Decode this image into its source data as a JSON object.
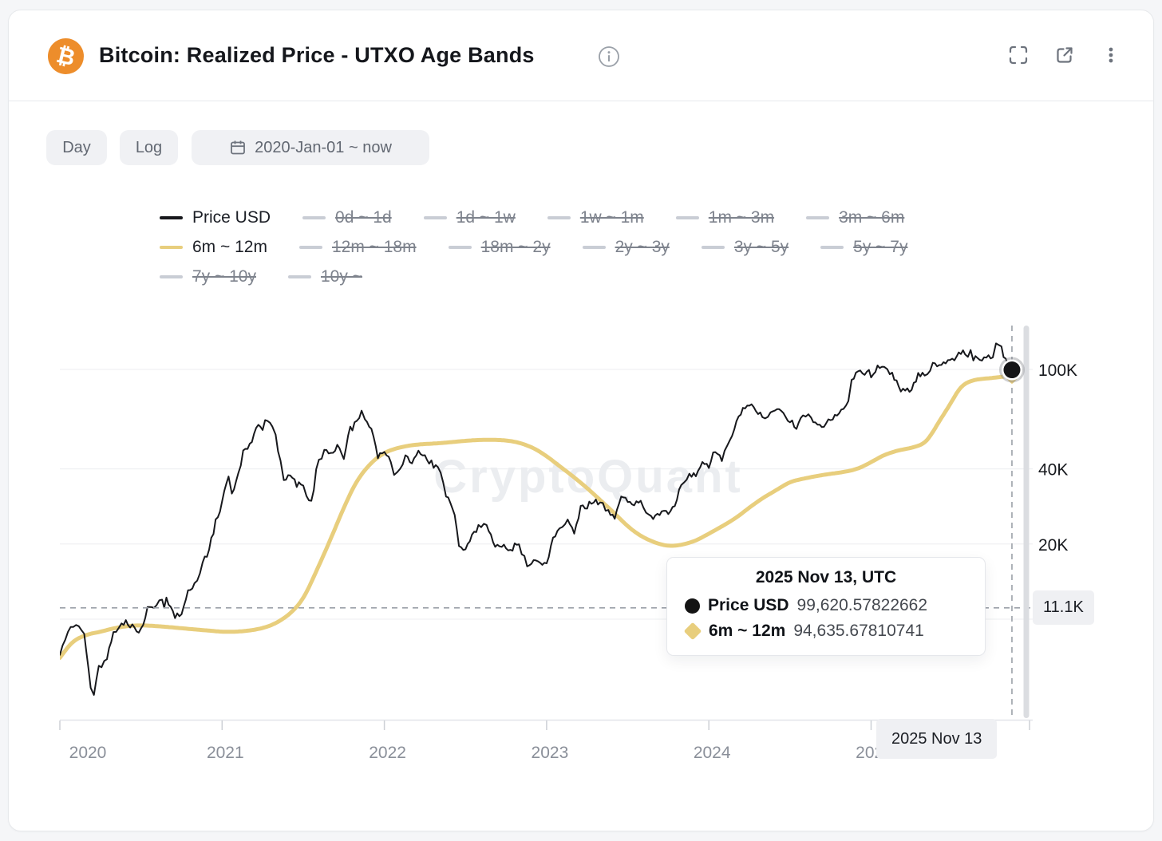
{
  "header": {
    "title": "Bitcoin: Realized Price - UTXO Age Bands",
    "coin_icon": "bitcoin-icon",
    "actions": [
      "fullscreen-icon",
      "open-external-icon",
      "more-menu-icon"
    ]
  },
  "toolbar": {
    "interval": "Day",
    "scale": "Log",
    "date_range": "2020-Jan-01 ~ now"
  },
  "legend": {
    "items": [
      {
        "label": "Price USD",
        "color": "#17181c",
        "active": true
      },
      {
        "label": "0d ~ 1d",
        "active": false
      },
      {
        "label": "1d ~ 1w",
        "active": false
      },
      {
        "label": "1w ~ 1m",
        "active": false
      },
      {
        "label": "1m ~ 3m",
        "active": false
      },
      {
        "label": "3m ~ 6m",
        "active": false
      },
      {
        "label": "6m ~ 12m",
        "color": "#E8CE7D",
        "active": true
      },
      {
        "label": "12m ~ 18m",
        "active": false
      },
      {
        "label": "18m ~ 2y",
        "active": false
      },
      {
        "label": "2y ~ 3y",
        "active": false
      },
      {
        "label": "3y ~ 5y",
        "active": false
      },
      {
        "label": "5y ~ 7y",
        "active": false
      },
      {
        "label": "7y ~ 10y",
        "active": false
      },
      {
        "label": "10y ~",
        "active": false
      }
    ],
    "inactive_color": "#c9cdd5",
    "row_breaks": [
      6,
      12,
      14
    ]
  },
  "watermark": "CryptoQuant",
  "tooltip": {
    "title": "2025 Nov 13, UTC",
    "rows": [
      {
        "marker": "circle",
        "color": "#141414",
        "label": "Price USD",
        "value": "99,620.57822662"
      },
      {
        "marker": "diamond",
        "color": "#E8CE7D",
        "label": "6m ~ 12m",
        "value": "94,635.67810741"
      }
    ]
  },
  "crosshair": {
    "date_label": "2025 Nov 13",
    "y_axis_label": "11.1K",
    "x": 2025.868,
    "hover_value": 11100,
    "point_price": 99620.57822662,
    "point_band": 94635.67810741
  },
  "chart_data": {
    "type": "line",
    "title": "Bitcoin: Realized Price - UTXO Age Bands",
    "x_unit": "decimal_year",
    "xlim": [
      2019.96,
      2025.98
    ],
    "y_scale": "log",
    "ylim": [
      3950,
      150000
    ],
    "grid": "horizontal",
    "x_ticks": [
      {
        "label": "2020",
        "year": 2020
      },
      {
        "label": "2021",
        "year": 2021
      },
      {
        "label": "2022",
        "year": 2022
      },
      {
        "label": "2023",
        "year": 2023
      },
      {
        "label": "2024",
        "year": 2024
      },
      {
        "label": "2025",
        "year": 2025
      }
    ],
    "y_ticks": [
      {
        "label": "100K",
        "value": 100000
      },
      {
        "label": "40K",
        "value": 40000
      },
      {
        "label": "20K",
        "value": 20000
      },
      {
        "label": "",
        "value": 10000
      }
    ],
    "series": [
      {
        "name": "Price USD",
        "color": "#17181c",
        "style": "jagged",
        "values": [
          [
            2020.0,
            7200
          ],
          [
            2020.05,
            8900
          ],
          [
            2020.1,
            9900
          ],
          [
            2020.15,
            8600
          ],
          [
            2020.19,
            5300
          ],
          [
            2020.21,
            4900
          ],
          [
            2020.24,
            6400
          ],
          [
            2020.29,
            7100
          ],
          [
            2020.33,
            8800
          ],
          [
            2020.38,
            9700
          ],
          [
            2020.42,
            9400
          ],
          [
            2020.46,
            9300
          ],
          [
            2020.5,
            9100
          ],
          [
            2020.54,
            10900
          ],
          [
            2020.58,
            11400
          ],
          [
            2020.63,
            11700
          ],
          [
            2020.67,
            11500
          ],
          [
            2020.71,
            10300
          ],
          [
            2020.75,
            10700
          ],
          [
            2020.79,
            13100
          ],
          [
            2020.83,
            13800
          ],
          [
            2020.88,
            16500
          ],
          [
            2020.92,
            19200
          ],
          [
            2020.96,
            23800
          ],
          [
            2021.0,
            29300
          ],
          [
            2021.04,
            37600
          ],
          [
            2021.06,
            31000
          ],
          [
            2021.1,
            38000
          ],
          [
            2021.13,
            46300
          ],
          [
            2021.17,
            50400
          ],
          [
            2021.21,
            58900
          ],
          [
            2021.25,
            58800
          ],
          [
            2021.28,
            63500
          ],
          [
            2021.31,
            58000
          ],
          [
            2021.33,
            53600
          ],
          [
            2021.36,
            43000
          ],
          [
            2021.38,
            36700
          ],
          [
            2021.42,
            37300
          ],
          [
            2021.46,
            35000
          ],
          [
            2021.5,
            33500
          ],
          [
            2021.52,
            31400
          ],
          [
            2021.55,
            29800
          ],
          [
            2021.58,
            39900
          ],
          [
            2021.63,
            47100
          ],
          [
            2021.67,
            47000
          ],
          [
            2021.71,
            48800
          ],
          [
            2021.75,
            43800
          ],
          [
            2021.79,
            57500
          ],
          [
            2021.83,
            61300
          ],
          [
            2021.86,
            66900
          ],
          [
            2021.88,
            63600
          ],
          [
            2021.92,
            57000
          ],
          [
            2021.96,
            46200
          ],
          [
            2022.0,
            47700
          ],
          [
            2022.04,
            43100
          ],
          [
            2022.06,
            36900
          ],
          [
            2022.08,
            38500
          ],
          [
            2022.13,
            44400
          ],
          [
            2022.17,
            43200
          ],
          [
            2022.21,
            47500
          ],
          [
            2022.25,
            45500
          ],
          [
            2022.29,
            41500
          ],
          [
            2022.33,
            39700
          ],
          [
            2022.38,
            31800
          ],
          [
            2022.42,
            29000
          ],
          [
            2022.46,
            20100
          ],
          [
            2022.5,
            19000
          ],
          [
            2022.54,
            21600
          ],
          [
            2022.58,
            23300
          ],
          [
            2022.63,
            24400
          ],
          [
            2022.67,
            20000
          ],
          [
            2022.71,
            19800
          ],
          [
            2022.75,
            19400
          ],
          [
            2022.79,
            19200
          ],
          [
            2022.83,
            20500
          ],
          [
            2022.88,
            16500
          ],
          [
            2022.92,
            17100
          ],
          [
            2022.96,
            16600
          ],
          [
            2023.0,
            16600
          ],
          [
            2023.04,
            21000
          ],
          [
            2023.08,
            23100
          ],
          [
            2023.13,
            24800
          ],
          [
            2023.17,
            22400
          ],
          [
            2023.21,
            28000
          ],
          [
            2023.25,
            28500
          ],
          [
            2023.29,
            30000
          ],
          [
            2023.33,
            29200
          ],
          [
            2023.38,
            27200
          ],
          [
            2023.42,
            25800
          ],
          [
            2023.46,
            30500
          ],
          [
            2023.5,
            30300
          ],
          [
            2023.54,
            29200
          ],
          [
            2023.58,
            29200
          ],
          [
            2023.63,
            26000
          ],
          [
            2023.67,
            25900
          ],
          [
            2023.71,
            26600
          ],
          [
            2023.75,
            27000
          ],
          [
            2023.79,
            28500
          ],
          [
            2023.83,
            34700
          ],
          [
            2023.88,
            37800
          ],
          [
            2023.92,
            37300
          ],
          [
            2023.96,
            42300
          ],
          [
            2024.0,
            42600
          ],
          [
            2024.04,
            46700
          ],
          [
            2024.08,
            43100
          ],
          [
            2024.13,
            51600
          ],
          [
            2024.17,
            62400
          ],
          [
            2024.21,
            68500
          ],
          [
            2024.25,
            71300
          ],
          [
            2024.29,
            69400
          ],
          [
            2024.33,
            63800
          ],
          [
            2024.38,
            67500
          ],
          [
            2024.42,
            69000
          ],
          [
            2024.46,
            66200
          ],
          [
            2024.5,
            62700
          ],
          [
            2024.54,
            57000
          ],
          [
            2024.58,
            66800
          ],
          [
            2024.63,
            64600
          ],
          [
            2024.67,
            59000
          ],
          [
            2024.71,
            59100
          ],
          [
            2024.75,
            63300
          ],
          [
            2024.79,
            66600
          ],
          [
            2024.83,
            69900
          ],
          [
            2024.86,
            76000
          ],
          [
            2024.88,
            91000
          ],
          [
            2024.92,
            96400
          ],
          [
            2024.96,
            97000
          ],
          [
            2025.0,
            94400
          ],
          [
            2025.04,
            102100
          ],
          [
            2025.08,
            104700
          ],
          [
            2025.1,
            97700
          ],
          [
            2025.13,
            96600
          ],
          [
            2025.17,
            84400
          ],
          [
            2025.21,
            82500
          ],
          [
            2025.25,
            82500
          ],
          [
            2025.29,
            94200
          ],
          [
            2025.33,
            94700
          ],
          [
            2025.38,
            104600
          ],
          [
            2025.42,
            103400
          ],
          [
            2025.46,
            107100
          ],
          [
            2025.5,
            108000
          ],
          [
            2025.54,
            118000
          ],
          [
            2025.58,
            115800
          ],
          [
            2025.63,
            113500
          ],
          [
            2025.67,
            108200
          ],
          [
            2025.71,
            112000
          ],
          [
            2025.75,
            114000
          ],
          [
            2025.77,
            125100
          ],
          [
            2025.79,
            122000
          ],
          [
            2025.83,
            110100
          ],
          [
            2025.85,
            103000
          ],
          [
            2025.868,
            99620.57822662
          ]
        ]
      },
      {
        "name": "6m ~ 12m",
        "color": "#E8CE7D",
        "style": "smooth",
        "values": [
          [
            2020.0,
            7000
          ],
          [
            2020.08,
            8200
          ],
          [
            2020.17,
            8700
          ],
          [
            2020.25,
            8900
          ],
          [
            2020.33,
            9200
          ],
          [
            2020.42,
            9400
          ],
          [
            2020.5,
            9450
          ],
          [
            2020.58,
            9400
          ],
          [
            2020.67,
            9300
          ],
          [
            2020.75,
            9200
          ],
          [
            2020.83,
            9100
          ],
          [
            2020.92,
            9000
          ],
          [
            2021.0,
            8900
          ],
          [
            2021.08,
            8900
          ],
          [
            2021.17,
            9000
          ],
          [
            2021.25,
            9200
          ],
          [
            2021.33,
            9600
          ],
          [
            2021.42,
            10500
          ],
          [
            2021.5,
            12000
          ],
          [
            2021.58,
            15500
          ],
          [
            2021.67,
            21000
          ],
          [
            2021.75,
            28000
          ],
          [
            2021.83,
            36000
          ],
          [
            2021.92,
            42500
          ],
          [
            2022.0,
            46500
          ],
          [
            2022.08,
            48500
          ],
          [
            2022.17,
            49800
          ],
          [
            2022.25,
            50300
          ],
          [
            2022.33,
            50600
          ],
          [
            2022.42,
            51200
          ],
          [
            2022.5,
            51800
          ],
          [
            2022.58,
            52200
          ],
          [
            2022.67,
            52300
          ],
          [
            2022.75,
            52000
          ],
          [
            2022.83,
            51000
          ],
          [
            2022.92,
            48500
          ],
          [
            2023.0,
            45000
          ],
          [
            2023.08,
            41000
          ],
          [
            2023.17,
            37000
          ],
          [
            2023.25,
            33500
          ],
          [
            2023.33,
            30000
          ],
          [
            2023.42,
            26500
          ],
          [
            2023.5,
            23500
          ],
          [
            2023.58,
            21500
          ],
          [
            2023.67,
            20200
          ],
          [
            2023.75,
            19600
          ],
          [
            2023.83,
            19800
          ],
          [
            2023.92,
            20600
          ],
          [
            2024.0,
            22000
          ],
          [
            2024.08,
            23500
          ],
          [
            2024.17,
            25500
          ],
          [
            2024.25,
            28000
          ],
          [
            2024.33,
            30500
          ],
          [
            2024.42,
            33000
          ],
          [
            2024.5,
            35500
          ],
          [
            2024.58,
            36500
          ],
          [
            2024.67,
            37500
          ],
          [
            2024.75,
            38200
          ],
          [
            2024.83,
            38800
          ],
          [
            2024.92,
            40000
          ],
          [
            2025.0,
            42500
          ],
          [
            2025.08,
            45500
          ],
          [
            2025.17,
            47500
          ],
          [
            2025.25,
            48500
          ],
          [
            2025.33,
            50500
          ],
          [
            2025.38,
            56000
          ],
          [
            2025.42,
            62000
          ],
          [
            2025.46,
            68000
          ],
          [
            2025.5,
            75000
          ],
          [
            2025.54,
            83000
          ],
          [
            2025.58,
            88000
          ],
          [
            2025.63,
            90500
          ],
          [
            2025.67,
            91500
          ],
          [
            2025.75,
            92500
          ],
          [
            2025.83,
            93800
          ],
          [
            2025.868,
            94635.67810741
          ]
        ]
      }
    ]
  }
}
